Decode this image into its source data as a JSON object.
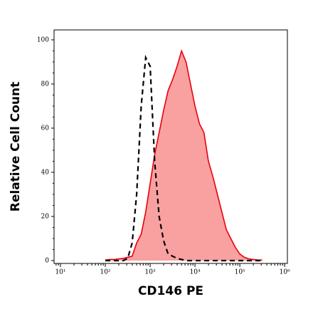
{
  "chart_data": {
    "type": "histogram-overlay",
    "xlabel": "CD146 PE",
    "ylabel": "Relative Cell Count",
    "xscale": "log",
    "xlim": [
      7.2,
      1150000
    ],
    "ylim": [
      -1.3,
      104.5
    ],
    "xticks": [
      {
        "value": 10,
        "label": "10¹"
      },
      {
        "value": 100,
        "label": "10²"
      },
      {
        "value": 1000,
        "label": "10³"
      },
      {
        "value": 10000,
        "label": "10⁴"
      },
      {
        "value": 100000,
        "label": "10⁵"
      },
      {
        "value": 1000000,
        "label": "10⁶"
      }
    ],
    "yticks": [
      0,
      20,
      40,
      60,
      80,
      100
    ],
    "x": [
      100,
      126,
      158,
      200,
      251,
      316,
      398,
      501,
      631,
      794,
      1000,
      1259,
      1585,
      1995,
      2512,
      3162,
      3981,
      5012,
      6310,
      7943,
      10000,
      12589,
      15849,
      19953,
      25119,
      31623,
      39811,
      50119,
      63096,
      79433,
      100000,
      125893,
      158489,
      199526,
      251189,
      316228
    ],
    "series": [
      {
        "style": "filled",
        "color": "#e8000b",
        "fill": "#f9a0a0",
        "values": [
          0.3,
          0.5,
          0.5,
          0.8,
          1,
          1.5,
          2,
          8,
          12,
          22,
          35,
          48,
          58,
          68,
          77,
          82,
          88,
          95,
          90,
          80,
          70,
          62,
          58,
          45,
          38,
          30,
          22,
          14,
          10,
          6,
          3,
          1.5,
          0.8,
          0.5,
          0.3,
          0.2
        ]
      },
      {
        "style": "dashed",
        "color": "#000000",
        "values": [
          0,
          0,
          0,
          0,
          0,
          1,
          8,
          30,
          70,
          92,
          88,
          45,
          20,
          9,
          3,
          2,
          1,
          0.5,
          0,
          0,
          0,
          0,
          0,
          0,
          0,
          0,
          0,
          0,
          0,
          0,
          0,
          0,
          0,
          0,
          0,
          0
        ]
      }
    ]
  }
}
